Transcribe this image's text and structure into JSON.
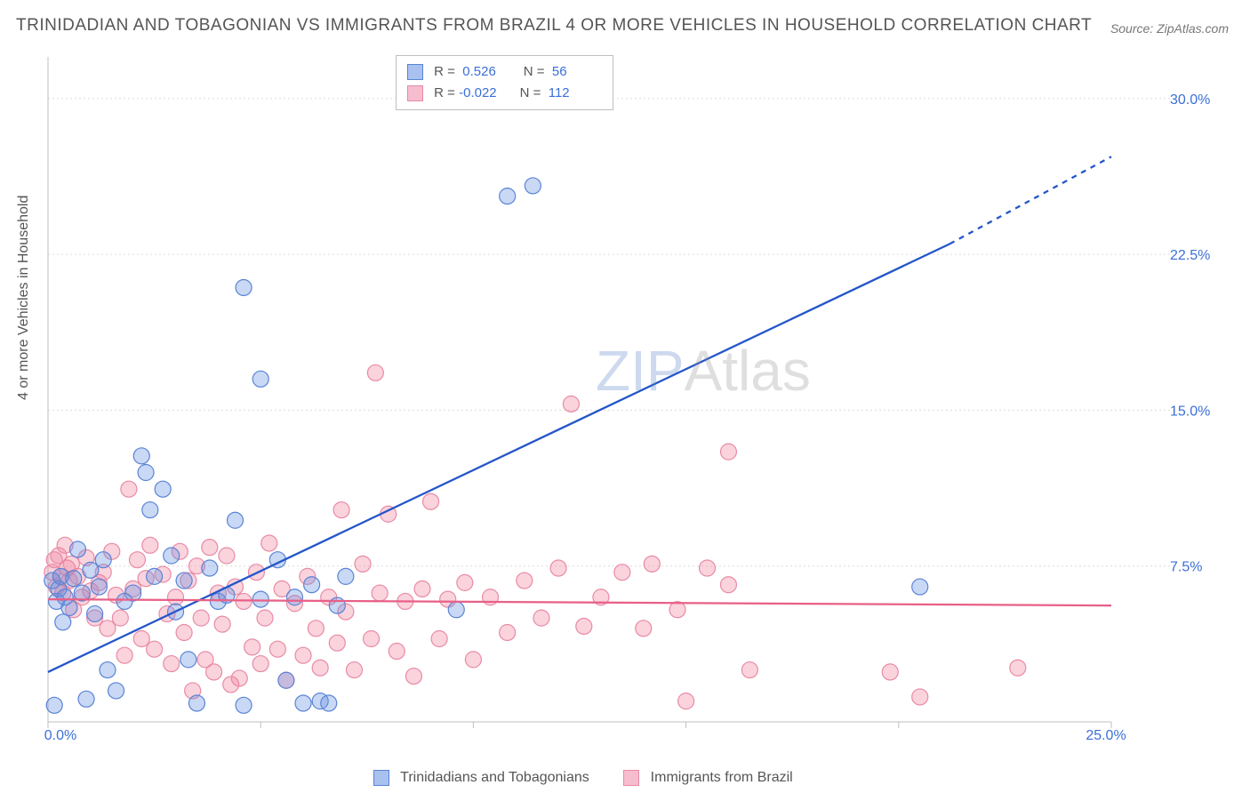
{
  "title": "TRINIDADIAN AND TOBAGONIAN VS IMMIGRANTS FROM BRAZIL 4 OR MORE VEHICLES IN HOUSEHOLD CORRELATION CHART",
  "source": "Source: ZipAtlas.com",
  "y_axis_label": "4 or more Vehicles in Household",
  "watermark_a": "ZIP",
  "watermark_b": "Atlas",
  "chart": {
    "type": "scatter",
    "xlim": [
      0,
      25
    ],
    "ylim": [
      0,
      32
    ],
    "x_ticks": [
      0,
      5,
      10,
      15,
      20,
      25
    ],
    "x_tick_labels_shown": {
      "0": "0.0%",
      "25": "25.0%"
    },
    "y_ticks": [
      7.5,
      15.0,
      22.5,
      30.0
    ],
    "y_tick_labels": [
      "7.5%",
      "15.0%",
      "22.5%",
      "30.0%"
    ],
    "grid_color": "#dcdcdc",
    "background": "#ffffff",
    "marker_radius": 9,
    "series": [
      {
        "name": "Trinidadians and Tobagonians",
        "color_fill": "rgba(101,143,224,0.35)",
        "color_stroke": "#5a84d6",
        "R": "0.526",
        "N": "56",
        "trend": {
          "x1": 0,
          "y1": 2.4,
          "x2": 21.2,
          "y2": 23.0,
          "dash_from_x": 21.2,
          "dash_to_x": 25,
          "dash_to_y": 27.2
        },
        "points": [
          [
            0.1,
            6.8
          ],
          [
            0.15,
            0.8
          ],
          [
            0.2,
            5.8
          ],
          [
            0.25,
            6.4
          ],
          [
            0.3,
            7.0
          ],
          [
            0.35,
            4.8
          ],
          [
            0.4,
            6.0
          ],
          [
            0.5,
            5.5
          ],
          [
            0.6,
            6.9
          ],
          [
            0.7,
            8.3
          ],
          [
            0.8,
            6.2
          ],
          [
            0.9,
            1.1
          ],
          [
            1.0,
            7.3
          ],
          [
            1.1,
            5.2
          ],
          [
            1.2,
            6.5
          ],
          [
            1.3,
            7.8
          ],
          [
            1.4,
            2.5
          ],
          [
            1.6,
            1.5
          ],
          [
            1.8,
            5.8
          ],
          [
            2.0,
            6.2
          ],
          [
            2.2,
            12.8
          ],
          [
            2.3,
            12.0
          ],
          [
            2.4,
            10.2
          ],
          [
            2.5,
            7.0
          ],
          [
            2.7,
            11.2
          ],
          [
            2.9,
            8.0
          ],
          [
            3.0,
            5.3
          ],
          [
            3.2,
            6.8
          ],
          [
            3.3,
            3.0
          ],
          [
            3.5,
            0.9
          ],
          [
            3.8,
            7.4
          ],
          [
            4.0,
            5.8
          ],
          [
            4.2,
            6.1
          ],
          [
            4.4,
            9.7
          ],
          [
            4.6,
            0.8
          ],
          [
            4.6,
            20.9
          ],
          [
            5.0,
            16.5
          ],
          [
            5.0,
            5.9
          ],
          [
            5.4,
            7.8
          ],
          [
            5.6,
            2.0
          ],
          [
            5.8,
            6.0
          ],
          [
            6.0,
            0.9
          ],
          [
            6.2,
            6.6
          ],
          [
            6.4,
            1.0
          ],
          [
            6.6,
            0.9
          ],
          [
            6.8,
            5.6
          ],
          [
            7.0,
            7.0
          ],
          [
            9.6,
            5.4
          ],
          [
            10.8,
            25.3
          ],
          [
            11.2,
            30.7
          ],
          [
            11.4,
            25.8
          ],
          [
            12.0,
            30.4
          ],
          [
            20.5,
            6.5
          ]
        ]
      },
      {
        "name": "Immigrants from Brazil",
        "color_fill": "rgba(240,130,158,0.35)",
        "color_stroke": "#e98aa5",
        "R": "-0.022",
        "N": "112",
        "trend": {
          "x1": 0,
          "y1": 5.9,
          "x2": 25,
          "y2": 5.6
        },
        "points": [
          [
            0.1,
            7.2
          ],
          [
            0.15,
            7.8
          ],
          [
            0.2,
            6.5
          ],
          [
            0.25,
            8.0
          ],
          [
            0.3,
            7.0
          ],
          [
            0.35,
            6.2
          ],
          [
            0.4,
            8.5
          ],
          [
            0.45,
            7.4
          ],
          [
            0.5,
            6.8
          ],
          [
            0.55,
            7.6
          ],
          [
            0.6,
            5.4
          ],
          [
            0.7,
            7.0
          ],
          [
            0.8,
            6.0
          ],
          [
            0.9,
            7.9
          ],
          [
            1.0,
            6.3
          ],
          [
            1.1,
            5.0
          ],
          [
            1.2,
            6.7
          ],
          [
            1.3,
            7.2
          ],
          [
            1.4,
            4.5
          ],
          [
            1.5,
            8.2
          ],
          [
            1.6,
            6.1
          ],
          [
            1.7,
            5.0
          ],
          [
            1.8,
            3.2
          ],
          [
            1.9,
            11.2
          ],
          [
            2.0,
            6.4
          ],
          [
            2.1,
            7.8
          ],
          [
            2.2,
            4.0
          ],
          [
            2.3,
            6.9
          ],
          [
            2.4,
            8.5
          ],
          [
            2.5,
            3.5
          ],
          [
            2.7,
            7.1
          ],
          [
            2.8,
            5.2
          ],
          [
            2.9,
            2.8
          ],
          [
            3.0,
            6.0
          ],
          [
            3.1,
            8.2
          ],
          [
            3.2,
            4.3
          ],
          [
            3.3,
            6.8
          ],
          [
            3.4,
            1.5
          ],
          [
            3.5,
            7.5
          ],
          [
            3.6,
            5.0
          ],
          [
            3.7,
            3.0
          ],
          [
            3.8,
            8.4
          ],
          [
            3.9,
            2.4
          ],
          [
            4.0,
            6.2
          ],
          [
            4.1,
            4.7
          ],
          [
            4.2,
            8.0
          ],
          [
            4.3,
            1.8
          ],
          [
            4.4,
            6.5
          ],
          [
            4.5,
            2.1
          ],
          [
            4.6,
            5.8
          ],
          [
            4.8,
            3.6
          ],
          [
            4.9,
            7.2
          ],
          [
            5.0,
            2.8
          ],
          [
            5.1,
            5.0
          ],
          [
            5.2,
            8.6
          ],
          [
            5.4,
            3.5
          ],
          [
            5.5,
            6.4
          ],
          [
            5.6,
            2.0
          ],
          [
            5.8,
            5.7
          ],
          [
            6.0,
            3.2
          ],
          [
            6.1,
            7.0
          ],
          [
            6.3,
            4.5
          ],
          [
            6.4,
            2.6
          ],
          [
            6.6,
            6.0
          ],
          [
            6.8,
            3.8
          ],
          [
            6.9,
            10.2
          ],
          [
            7.0,
            5.3
          ],
          [
            7.2,
            2.5
          ],
          [
            7.4,
            7.6
          ],
          [
            7.6,
            4.0
          ],
          [
            7.7,
            16.8
          ],
          [
            7.8,
            6.2
          ],
          [
            8.0,
            10.0
          ],
          [
            8.2,
            3.4
          ],
          [
            8.4,
            5.8
          ],
          [
            8.6,
            2.2
          ],
          [
            8.8,
            6.4
          ],
          [
            9.0,
            10.6
          ],
          [
            9.2,
            4.0
          ],
          [
            9.4,
            5.9
          ],
          [
            9.8,
            6.7
          ],
          [
            10.0,
            3.0
          ],
          [
            10.4,
            6.0
          ],
          [
            10.8,
            4.3
          ],
          [
            11.2,
            6.8
          ],
          [
            11.6,
            5.0
          ],
          [
            12.0,
            7.4
          ],
          [
            12.3,
            15.3
          ],
          [
            12.6,
            4.6
          ],
          [
            13.0,
            6.0
          ],
          [
            13.5,
            7.2
          ],
          [
            14.0,
            4.5
          ],
          [
            14.2,
            7.6
          ],
          [
            14.8,
            5.4
          ],
          [
            15.0,
            1.0
          ],
          [
            15.5,
            7.4
          ],
          [
            16.0,
            13.0
          ],
          [
            16.0,
            6.6
          ],
          [
            16.5,
            2.5
          ],
          [
            19.8,
            2.4
          ],
          [
            20.5,
            1.2
          ],
          [
            22.8,
            2.6
          ]
        ]
      }
    ],
    "stats_legend": {
      "title_R": "R =",
      "title_N": "N ="
    },
    "bottom_legend": [
      {
        "label": "Trinidadians and Tobagonians",
        "fill": "#a8c1ee",
        "stroke": "#5a84d6"
      },
      {
        "label": "Immigrants from Brazil",
        "fill": "#f6bdcf",
        "stroke": "#e98aa5"
      }
    ]
  }
}
